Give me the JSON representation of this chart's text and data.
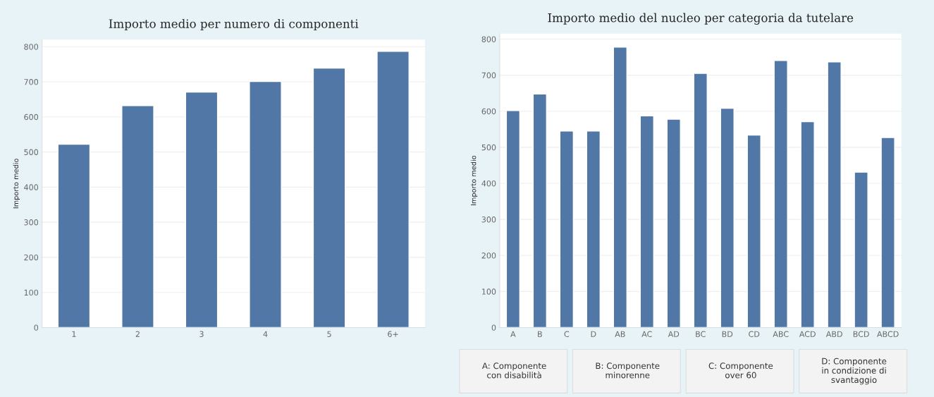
{
  "chart_data": [
    {
      "type": "bar",
      "title": "Importo medio per numero di componenti",
      "ylabel": "Importo medio",
      "categories": [
        "1",
        "2",
        "3",
        "4",
        "5",
        "6+"
      ],
      "values": [
        522,
        632,
        671,
        701,
        739,
        787
      ],
      "color": "#5077a5",
      "ylim": [
        0,
        820
      ],
      "yticks": [
        0,
        100,
        200,
        300,
        400,
        500,
        600,
        700,
        800
      ],
      "grid": "y"
    },
    {
      "type": "bar",
      "title": "Importo medio del nucleo per categoria da tutelare",
      "ylabel": "Importo medio",
      "categories": [
        "A",
        "B",
        "C",
        "D",
        "AB",
        "AC",
        "AD",
        "BC",
        "BD",
        "CD",
        "ABC",
        "ACD",
        "ABD",
        "BCD",
        "ABCD"
      ],
      "values": [
        602,
        648,
        545,
        545,
        778,
        587,
        578,
        705,
        608,
        534,
        741,
        571,
        737,
        431,
        527
      ],
      "color": "#5077a5",
      "ylim": [
        0,
        815
      ],
      "yticks": [
        0,
        100,
        200,
        300,
        400,
        500,
        600,
        700,
        800
      ],
      "grid": "y",
      "annotations": [
        "A: Componente\ncon disabilità",
        "B: Componente\nminorenne",
        "C: Componente\nover 60",
        "D: Componente\nin condizione di\nsvantaggio"
      ]
    }
  ]
}
